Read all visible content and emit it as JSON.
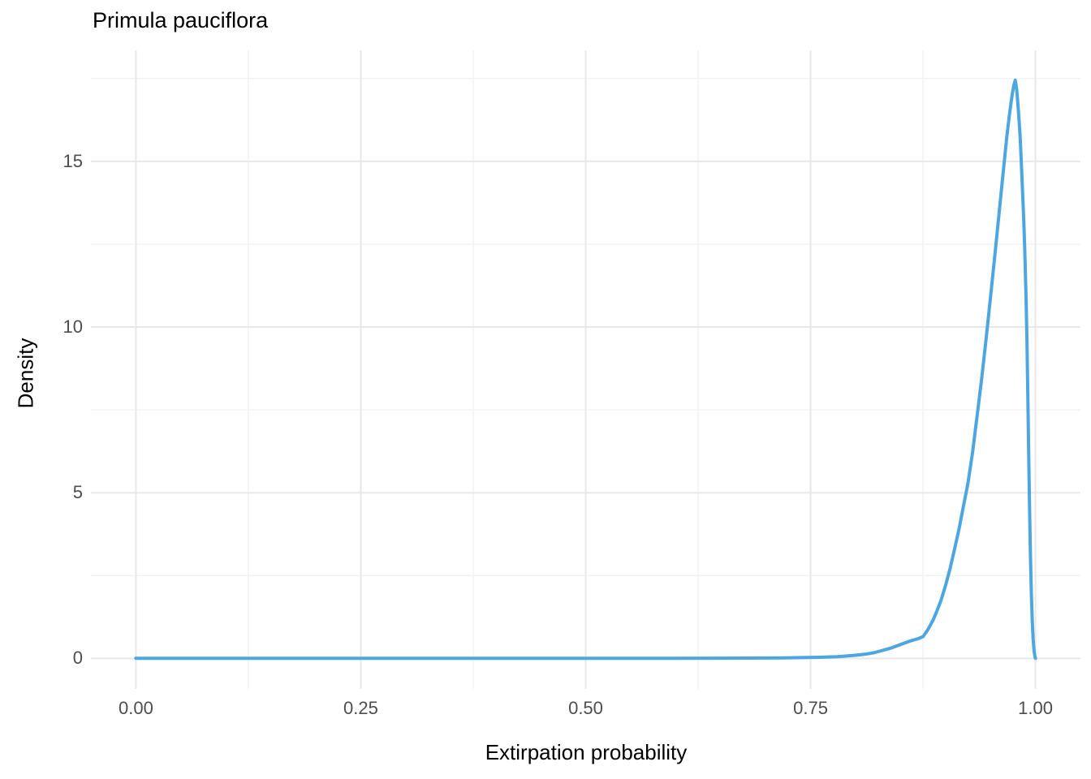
{
  "chart_data": {
    "type": "line",
    "subtype": "density-curve",
    "title": "Primula pauciflora",
    "xlabel": "Extirpation probability",
    "ylabel": "Density",
    "x_ticks": [
      {
        "value": 0.0,
        "label": "0.00"
      },
      {
        "value": 0.25,
        "label": "0.25"
      },
      {
        "value": 0.5,
        "label": "0.50"
      },
      {
        "value": 0.75,
        "label": "0.75"
      },
      {
        "value": 1.0,
        "label": "1.00"
      }
    ],
    "y_ticks": [
      {
        "value": 0,
        "label": "0"
      },
      {
        "value": 5,
        "label": "5"
      },
      {
        "value": 10,
        "label": "10"
      },
      {
        "value": 15,
        "label": "15"
      }
    ],
    "x_minor_gridlines": [
      0.125,
      0.375,
      0.625,
      0.875
    ],
    "y_minor_gridlines": [
      2.5,
      7.5,
      12.5,
      17.5
    ],
    "xlim": [
      -0.05,
      1.05
    ],
    "ylim": [
      -0.92,
      18.35
    ],
    "grid": "major-and-minor",
    "legend": "none",
    "panel_background": "white",
    "peak": {
      "x": 0.978,
      "density": 17.45
    },
    "series": [
      {
        "name": "extirpation-probability-density",
        "points": [
          [
            0.0,
            0.004
          ],
          [
            0.05,
            0.004
          ],
          [
            0.1,
            0.004
          ],
          [
            0.15,
            0.004
          ],
          [
            0.2,
            0.004
          ],
          [
            0.25,
            0.004
          ],
          [
            0.3,
            0.004
          ],
          [
            0.35,
            0.004
          ],
          [
            0.4,
            0.004
          ],
          [
            0.45,
            0.004
          ],
          [
            0.5,
            0.004
          ],
          [
            0.55,
            0.004
          ],
          [
            0.6,
            0.005
          ],
          [
            0.65,
            0.007
          ],
          [
            0.7,
            0.012
          ],
          [
            0.72,
            0.016
          ],
          [
            0.74,
            0.024
          ],
          [
            0.76,
            0.035
          ],
          [
            0.78,
            0.055
          ],
          [
            0.8,
            0.095
          ],
          [
            0.81,
            0.125
          ],
          [
            0.82,
            0.17
          ],
          [
            0.83,
            0.24
          ],
          [
            0.84,
            0.32
          ],
          [
            0.85,
            0.42
          ],
          [
            0.86,
            0.52
          ],
          [
            0.87,
            0.6
          ],
          [
            0.875,
            0.66
          ],
          [
            0.88,
            0.85
          ],
          [
            0.886,
            1.15
          ],
          [
            0.89,
            1.4
          ],
          [
            0.895,
            1.75
          ],
          [
            0.9,
            2.2
          ],
          [
            0.905,
            2.7
          ],
          [
            0.91,
            3.3
          ],
          [
            0.915,
            3.9
          ],
          [
            0.92,
            4.6
          ],
          [
            0.925,
            5.3
          ],
          [
            0.93,
            6.2
          ],
          [
            0.935,
            7.3
          ],
          [
            0.94,
            8.4
          ],
          [
            0.945,
            9.6
          ],
          [
            0.95,
            10.9
          ],
          [
            0.955,
            12.2
          ],
          [
            0.958,
            13.0
          ],
          [
            0.962,
            14.1
          ],
          [
            0.965,
            14.9
          ],
          [
            0.968,
            15.7
          ],
          [
            0.971,
            16.4
          ],
          [
            0.974,
            17.0
          ],
          [
            0.976,
            17.3
          ],
          [
            0.9775,
            17.45
          ],
          [
            0.979,
            17.2
          ],
          [
            0.98,
            16.9
          ],
          [
            0.9815,
            16.35
          ],
          [
            0.983,
            15.7
          ],
          [
            0.984,
            15.1
          ],
          [
            0.9855,
            14.2
          ],
          [
            0.987,
            13.2
          ],
          [
            0.988,
            12.4
          ],
          [
            0.9895,
            10.9
          ],
          [
            0.9905,
            9.6
          ],
          [
            0.9915,
            7.9
          ],
          [
            0.9925,
            6.1
          ],
          [
            0.9935,
            4.4
          ],
          [
            0.9945,
            3.0
          ],
          [
            0.9955,
            1.9
          ],
          [
            0.9965,
            1.1
          ],
          [
            0.9975,
            0.55
          ],
          [
            0.9985,
            0.22
          ],
          [
            0.9995,
            0.05
          ],
          [
            1.0,
            0.004
          ]
        ]
      }
    ],
    "colors": {
      "line": "#4DA6E0",
      "major_grid": "#E8E8E8",
      "minor_grid": "#F2F2F2",
      "tick_text": "#4D4D4D",
      "title_text": "#000000",
      "background": "#FFFFFF"
    },
    "line_width": 4
  }
}
